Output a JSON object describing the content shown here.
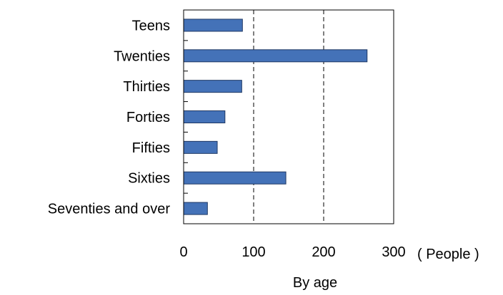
{
  "chart_data": {
    "type": "bar",
    "orientation": "horizontal",
    "categories": [
      "Teens",
      "Twenties",
      "Thirties",
      "Forties",
      "Fifties",
      "Sixties",
      "Seventies and over"
    ],
    "values": [
      84,
      262,
      83,
      59,
      48,
      146,
      34
    ],
    "xlabel": "By age",
    "unit_label": "( People )",
    "xlim": [
      0,
      300
    ],
    "x_ticks": [
      0,
      100,
      200,
      300
    ],
    "grid": "vertical dashed",
    "bar_color": "#4472b8",
    "bar_edge_color": "#1f3864"
  }
}
